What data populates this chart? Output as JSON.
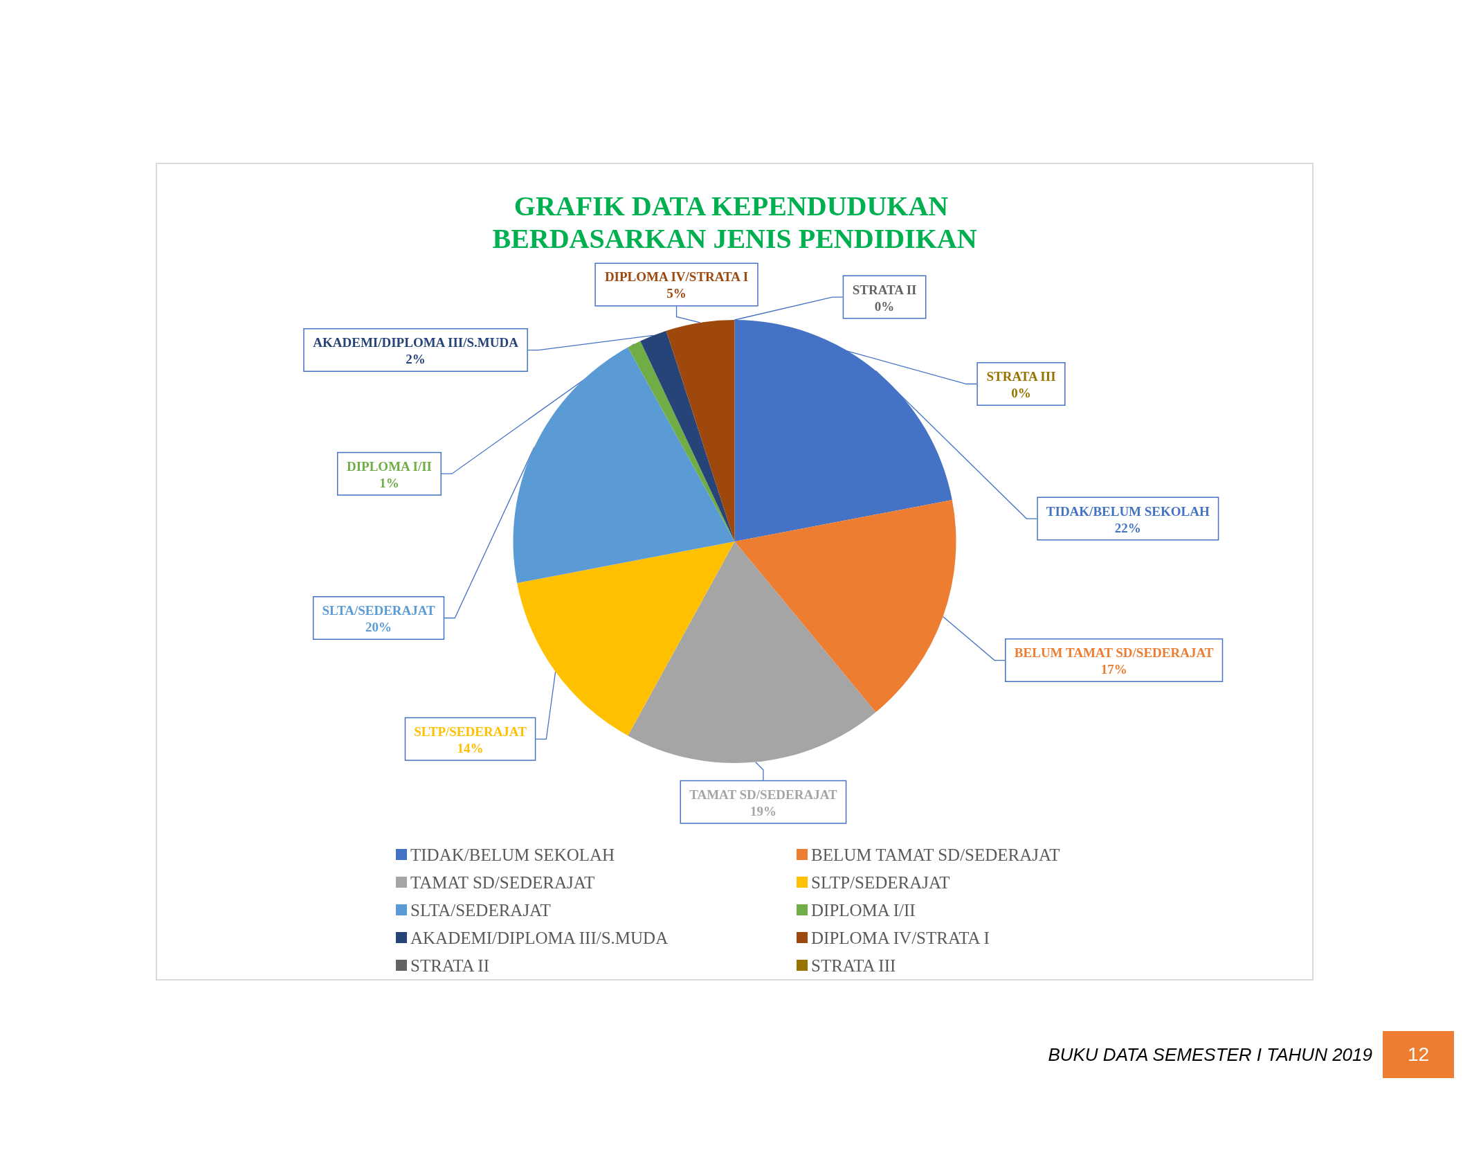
{
  "chart_data": {
    "type": "pie",
    "title": "GRAFIK DATA KEPENDUDUKAN BERDASARKAN JENIS PENDIDIKAN",
    "categories": [
      "TIDAK/BELUM SEKOLAH",
      "BELUM TAMAT SD/SEDERAJAT",
      "TAMAT SD/SEDERAJAT",
      "SLTP/SEDERAJAT",
      "SLTA/SEDERAJAT",
      "DIPLOMA I/II",
      "AKADEMI/DIPLOMA III/S.MUDA",
      "DIPLOMA IV/STRATA I",
      "STRATA II",
      "STRATA III"
    ],
    "values": [
      22,
      17,
      19,
      14,
      20,
      1,
      2,
      5,
      0,
      0
    ],
    "colors": [
      "#4472c4",
      "#ed7d31",
      "#a5a5a5",
      "#ffc000",
      "#5b9bd5",
      "#70ad47",
      "#264478",
      "#9e480e",
      "#636363",
      "#997300"
    ],
    "value_labels": [
      "22%",
      "17%",
      "19%",
      "14%",
      "20%",
      "1%",
      "2%",
      "5%",
      "0%",
      "0%"
    ],
    "legend": "bottom",
    "annotations": [
      "BUKU DATA SEMESTER I TAHUN 2019",
      "12"
    ]
  }
}
